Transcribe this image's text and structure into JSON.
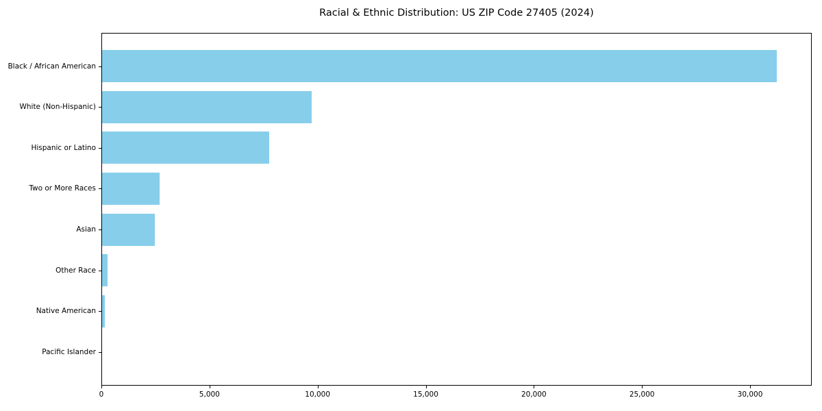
{
  "chart_data": {
    "type": "bar",
    "orientation": "horizontal",
    "title": "Racial & Ethnic Distribution: US ZIP Code 27405 (2024)",
    "categories": [
      "Black / African American",
      "White (Non-Hispanic)",
      "Hispanic or Latino",
      "Two or More Races",
      "Asian",
      "Other Race",
      "Native American",
      "Pacific Islander"
    ],
    "values": [
      31250,
      9720,
      7760,
      2680,
      2470,
      280,
      150,
      25
    ],
    "xlabel": "",
    "ylabel": "",
    "xlim": [
      0,
      32850
    ],
    "x_ticks": [
      0,
      5000,
      10000,
      15000,
      20000,
      25000,
      30000
    ],
    "x_tick_labels": [
      "0",
      "5,000",
      "10,000",
      "15,000",
      "20,000",
      "25,000",
      "30,000"
    ],
    "bar_color": "#87CEEB",
    "frame_color": "#000000",
    "text_color": "#000000",
    "background": "#FFFFFF",
    "grid": false,
    "legend": null
  }
}
